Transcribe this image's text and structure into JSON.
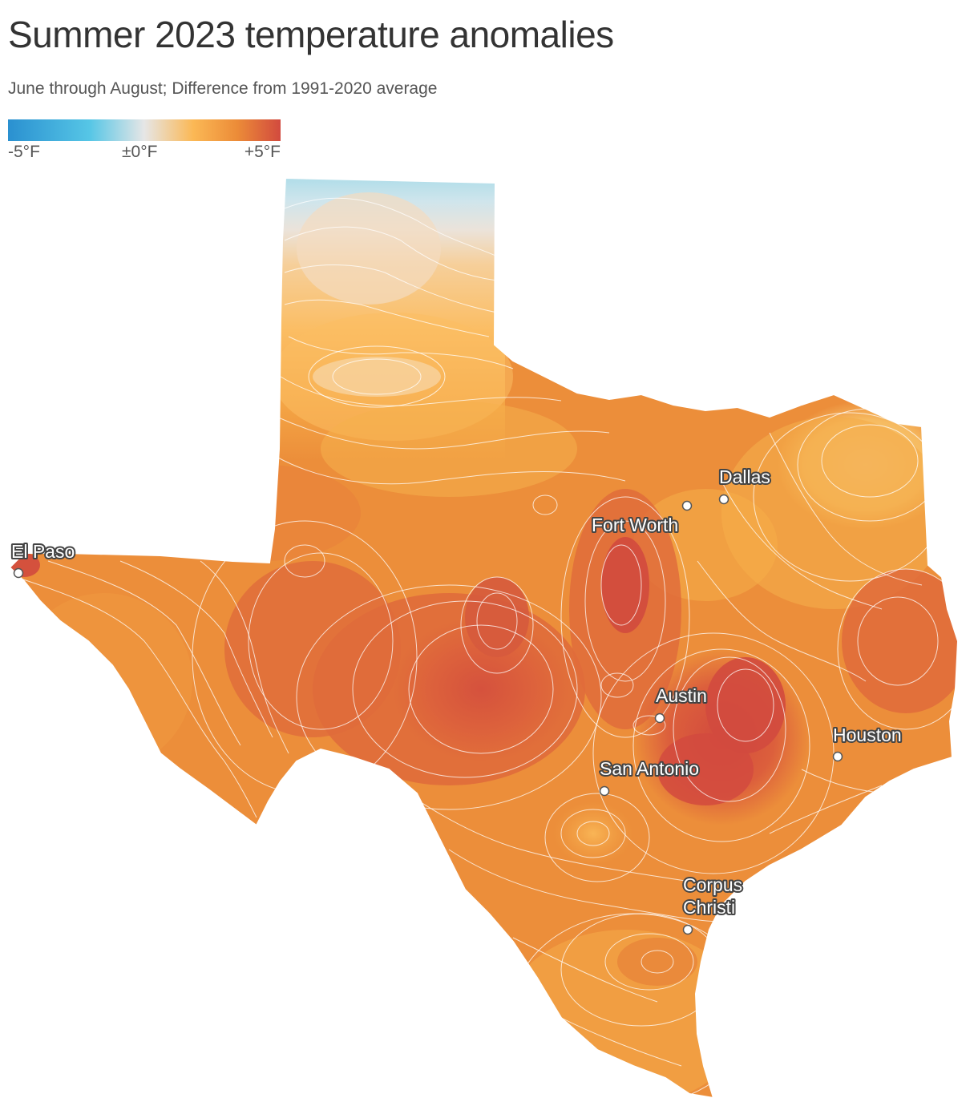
{
  "title": "Summer 2023 temperature anomalies",
  "subtitle": "June through August; Difference from 1991-2020 average",
  "legend": {
    "min_label": "-5°F",
    "mid_label": "±0°F",
    "max_label": "+5°F",
    "colors": [
      "#2a90d0",
      "#56c6e6",
      "#e6e6e6",
      "#fbb855",
      "#ec8c38",
      "#d24a3e"
    ]
  },
  "cities": [
    {
      "id": "dallas",
      "name": "Dallas"
    },
    {
      "id": "fort-worth",
      "name": "Fort Worth"
    },
    {
      "id": "el-paso",
      "name": "El Paso"
    },
    {
      "id": "austin",
      "name": "Austin"
    },
    {
      "id": "houston",
      "name": "Houston"
    },
    {
      "id": "san-antonio",
      "name": "San Antonio"
    },
    {
      "id": "corpus-christi",
      "name": "Corpus Christi"
    }
  ]
}
